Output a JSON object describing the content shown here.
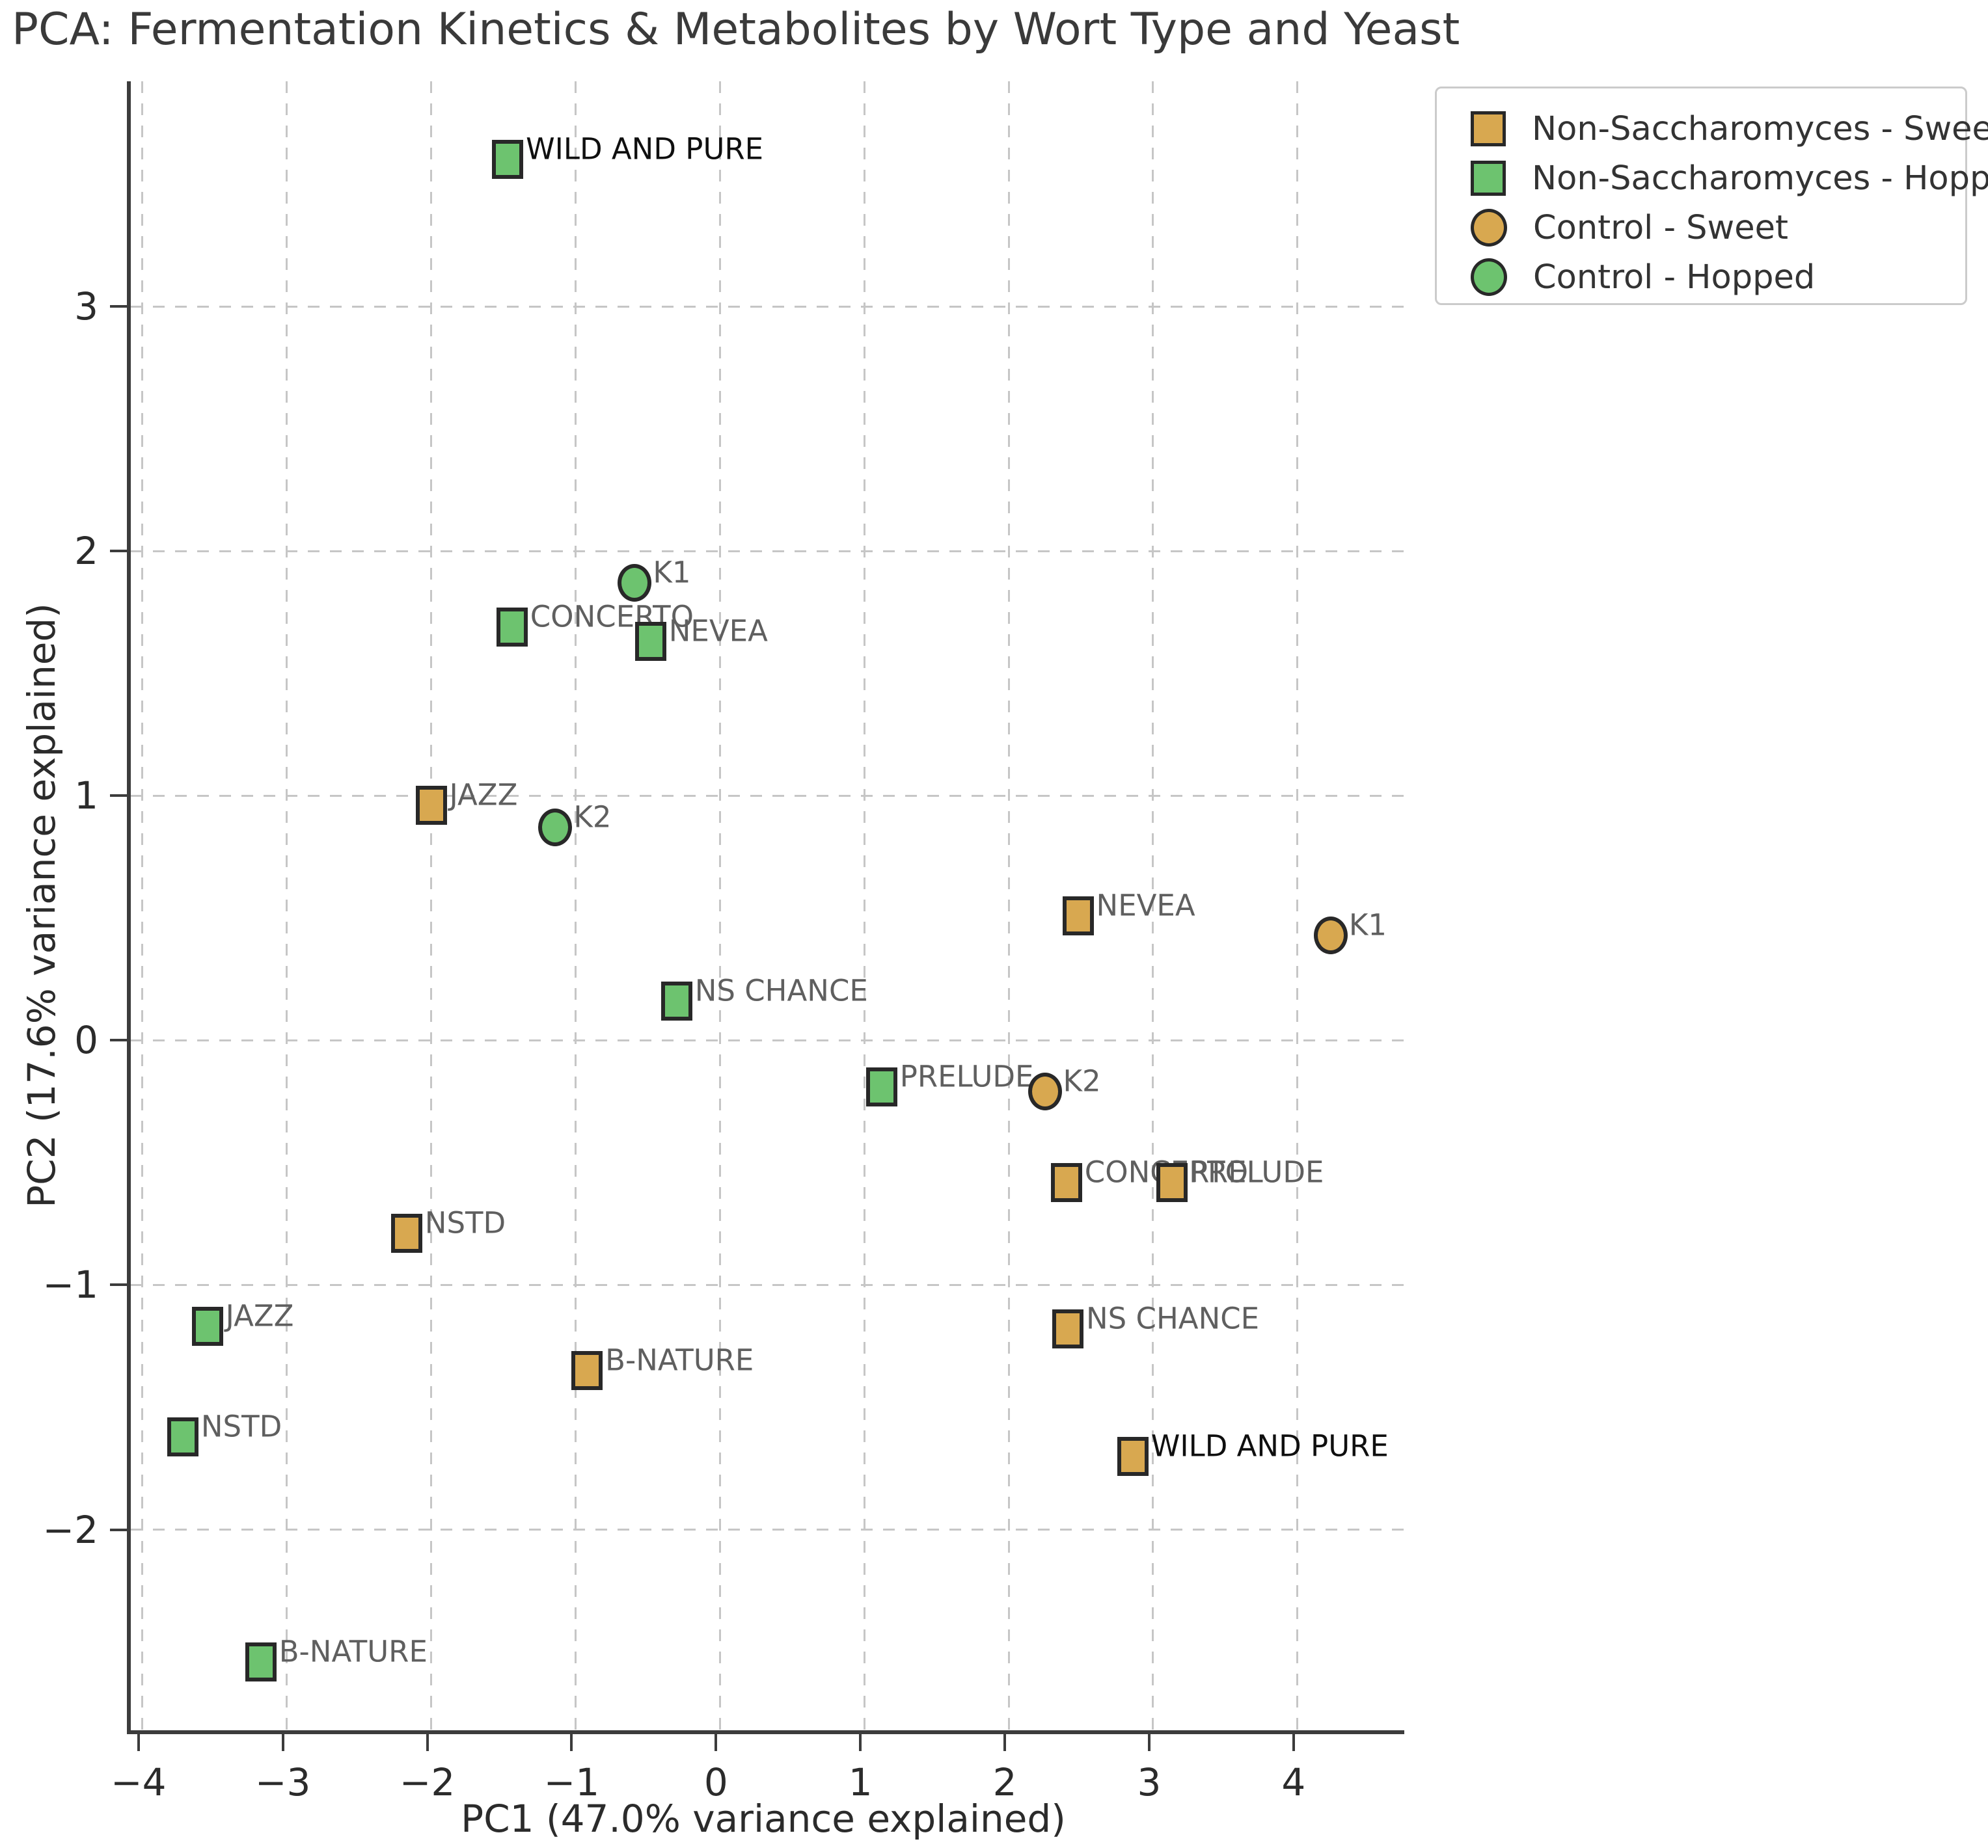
{
  "title": "PCA: Fermentation Kinetics & Metabolites by Wort Type and Yeast",
  "colors": {
    "tan": "#D8A850",
    "green": "#6DC36F",
    "marker_edge": "#282828",
    "grid": "#c6c6c6",
    "spine": "#3c3c3c",
    "tick_label": "#2b2b2b",
    "data_label": "#5f5f5f",
    "data_label_emphasis": "#0f0f0f",
    "legend_border": "#cbcbcb",
    "legend_text": "#333333"
  },
  "legend": {
    "items": [
      {
        "label": "Non-Saccharomyces - Sweet",
        "marker": "square",
        "color_key": "tan"
      },
      {
        "label": "Non-Saccharomyces - Hopped",
        "marker": "square",
        "color_key": "green"
      },
      {
        "label": "Control - Sweet",
        "marker": "circle",
        "color_key": "tan"
      },
      {
        "label": "Control - Hopped",
        "marker": "circle",
        "color_key": "green"
      }
    ]
  },
  "chart_data": {
    "type": "scatter",
    "title": "PCA: Fermentation Kinetics & Metabolites by Wort Type and Yeast",
    "xlabel": "PC1 (47.0% variance explained)",
    "ylabel": "PC2 (17.6% variance explained)",
    "xlim": [
      -4.08,
      4.74
    ],
    "ylim": [
      -2.82,
      3.92
    ],
    "xticks": [
      -4,
      -3,
      -2,
      -1,
      0,
      1,
      2,
      3,
      4
    ],
    "xtick_labels": [
      "−4",
      "−3",
      "−2",
      "−1",
      "0",
      "1",
      "2",
      "3",
      "4"
    ],
    "yticks": [
      -2,
      -1,
      0,
      1,
      2,
      3
    ],
    "ytick_labels": [
      "−2",
      "−1",
      "0",
      "1",
      "2",
      "3"
    ],
    "grid": true,
    "grid_style": "dashed",
    "legend_position": "upper right",
    "series": [
      {
        "name": "Non-Saccharomyces - Sweet",
        "marker": "square",
        "color_key": "tan",
        "points": [
          {
            "label": "JAZZ",
            "x": -2.0,
            "y": 0.96
          },
          {
            "label": "NEVEA",
            "x": 2.48,
            "y": 0.51
          },
          {
            "label": "CONCERTO",
            "x": 2.4,
            "y": -0.58
          },
          {
            "label": "PRELUDE",
            "x": 3.13,
            "y": -0.58
          },
          {
            "label": "NSTD",
            "x": -2.17,
            "y": -0.79
          },
          {
            "label": "B-NATURE",
            "x": -0.92,
            "y": -1.35
          },
          {
            "label": "NS CHANCE",
            "x": 2.41,
            "y": -1.18
          },
          {
            "label": "WILD AND PURE",
            "x": 2.86,
            "y": -1.7,
            "emphasis": true
          }
        ]
      },
      {
        "name": "Non-Saccharomyces - Hopped",
        "marker": "square",
        "color_key": "green",
        "points": [
          {
            "label": "WILD AND PURE",
            "x": -1.47,
            "y": 3.6,
            "emphasis": true
          },
          {
            "label": "CONCERTO",
            "x": -1.44,
            "y": 1.69
          },
          {
            "label": "NEVEA",
            "x": -0.48,
            "y": 1.63
          },
          {
            "label": "NS CHANCE",
            "x": -0.3,
            "y": 0.16
          },
          {
            "label": "PRELUDE",
            "x": 1.12,
            "y": -0.19
          },
          {
            "label": "JAZZ",
            "x": -3.55,
            "y": -1.17
          },
          {
            "label": "NSTD",
            "x": -3.72,
            "y": -1.62
          },
          {
            "label": "B-NATURE",
            "x": -3.18,
            "y": -2.54
          }
        ]
      },
      {
        "name": "Control - Sweet",
        "marker": "circle",
        "color_key": "tan",
        "points": [
          {
            "label": "K1",
            "x": 4.23,
            "y": 0.43
          },
          {
            "label": "K2",
            "x": 2.25,
            "y": -0.21
          }
        ]
      },
      {
        "name": "Control - Hopped",
        "marker": "circle",
        "color_key": "green",
        "points": [
          {
            "label": "K1",
            "x": -0.59,
            "y": 1.87
          },
          {
            "label": "K2",
            "x": -1.14,
            "y": 0.87
          }
        ]
      }
    ]
  }
}
